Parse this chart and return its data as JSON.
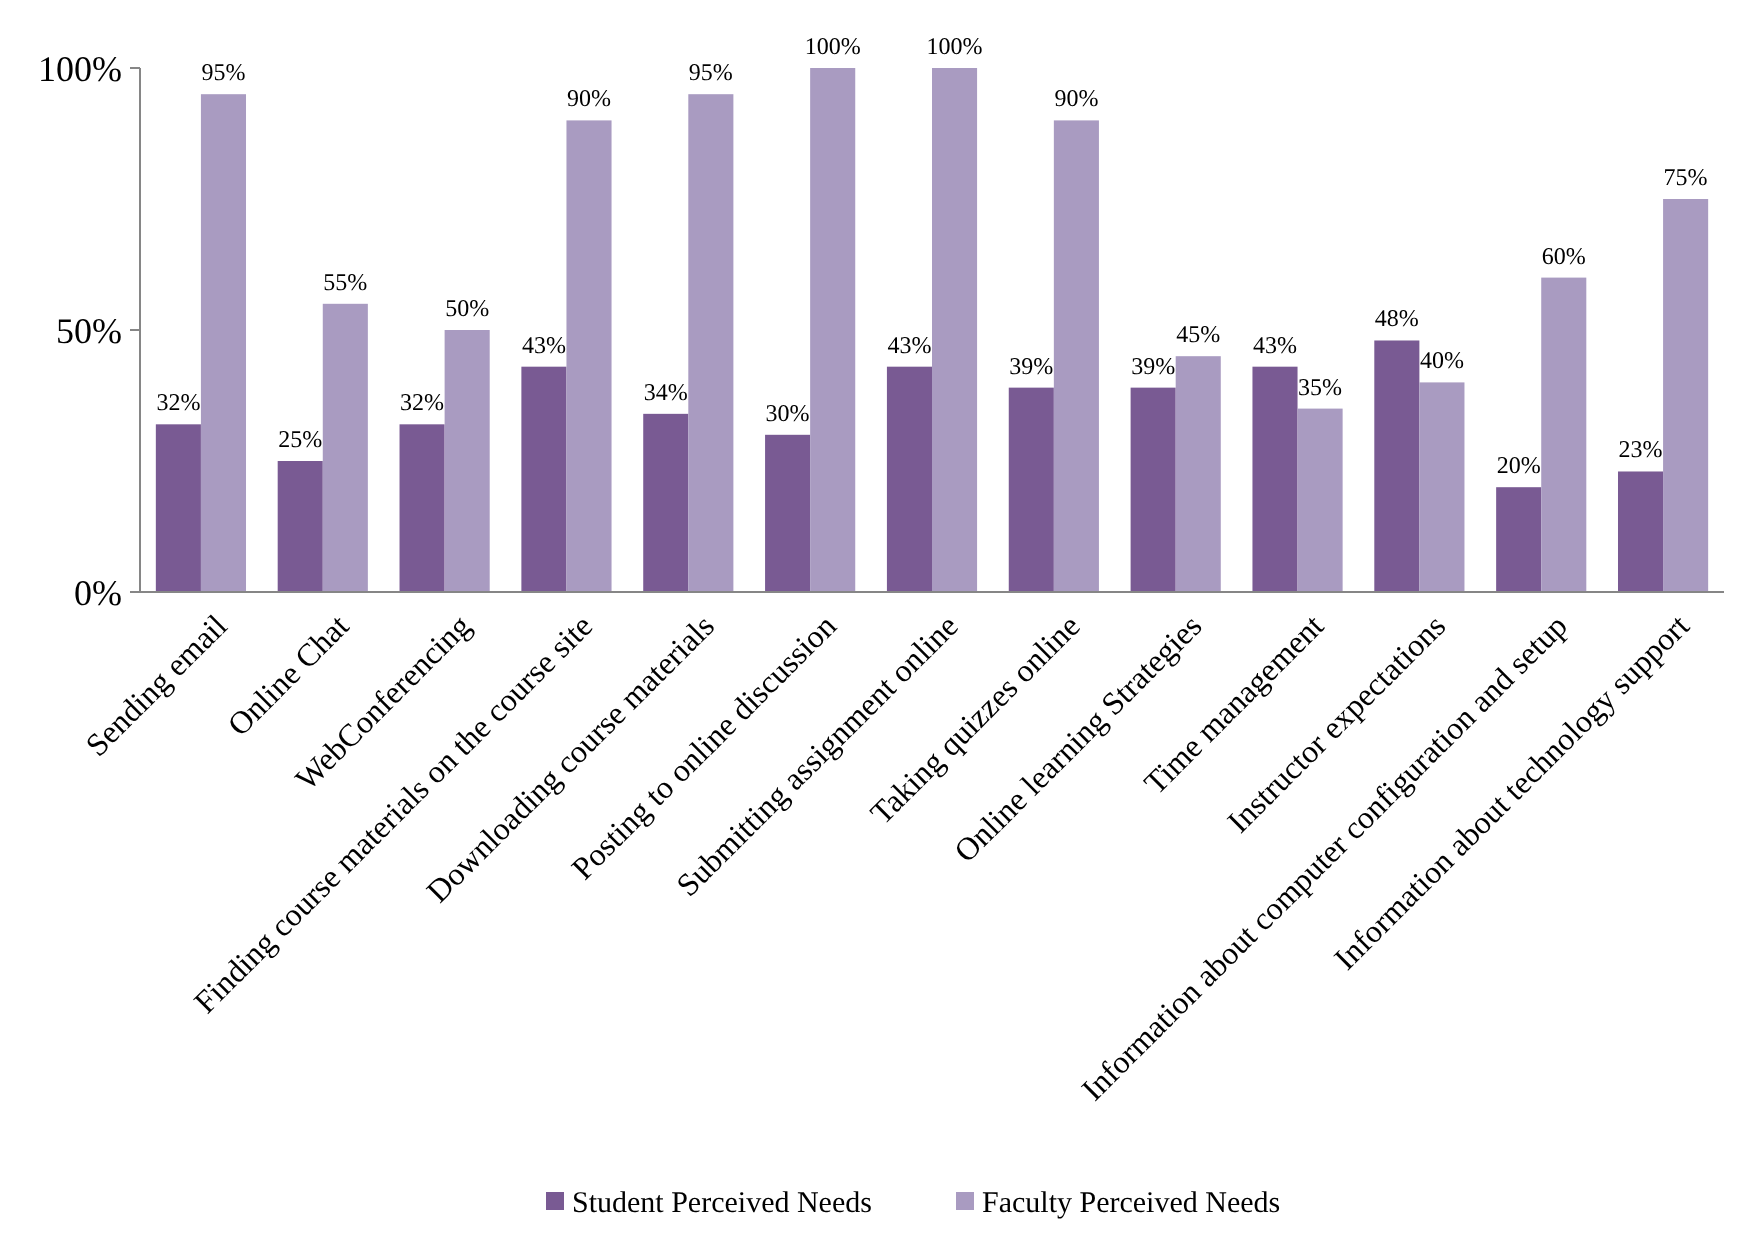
{
  "chart_data": {
    "type": "bar",
    "categories": [
      "Sending email",
      "Online Chat",
      "WebConferencing",
      "Finding course materials on the course site",
      "Downloading course materials",
      "Posting to online discussion",
      "Submitting assignment online",
      "Taking quizzes online",
      "Online learning Strategies",
      "Time management",
      "Instructor expectations",
      "Information about computer configuration and setup",
      "Information about technology support"
    ],
    "series": [
      {
        "name": "Student Perceived Needs",
        "color": "#795a93",
        "values": [
          32,
          25,
          32,
          43,
          34,
          30,
          43,
          39,
          39,
          43,
          48,
          20,
          23
        ],
        "value_labels": [
          "32%",
          "25%",
          "32%",
          "43%",
          "34%",
          "30%",
          "43%",
          "39%",
          "39%",
          "43%",
          "48%",
          "20%",
          "23%"
        ]
      },
      {
        "name": "Faculty Perceived Needs",
        "color": "#a99bc1",
        "values": [
          95,
          55,
          50,
          90,
          95,
          100,
          100,
          90,
          45,
          35,
          40,
          60,
          75
        ],
        "value_labels": [
          "95%",
          "55%",
          "50%",
          "90%",
          "95%",
          "100%",
          "100%",
          "90%",
          "45%",
          "35%",
          "40%",
          "60%",
          "75%"
        ]
      }
    ],
    "ylim": [
      0,
      100
    ],
    "yticks": [
      {
        "value": 0,
        "label": "0%"
      },
      {
        "value": 50,
        "label": "50%"
      },
      {
        "value": 100,
        "label": "100%"
      }
    ],
    "grid": false,
    "legend": "bottom"
  }
}
